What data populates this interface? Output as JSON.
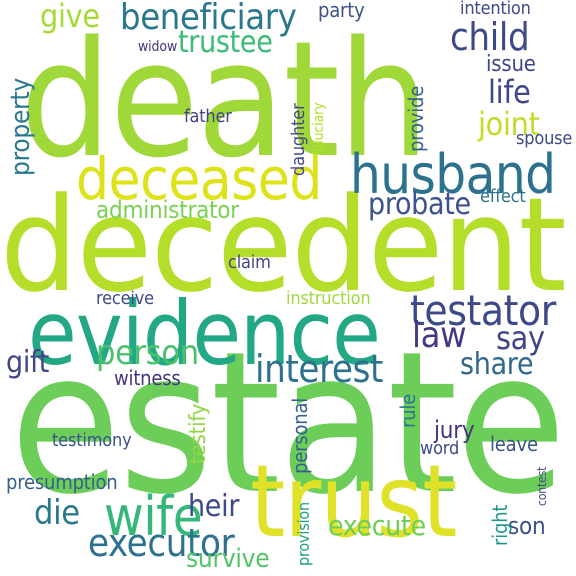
{
  "word_cloud": {
    "background": "#ffffff",
    "palette": [
      "#d7e02a",
      "#9fd838",
      "#6cce59",
      "#40bc71",
      "#21a685",
      "#228d8d",
      "#2c728e",
      "#355e8d",
      "#414487",
      "#482475",
      "#440154"
    ],
    "words": [
      {
        "text": "estate",
        "color": "#6cce59"
      },
      {
        "text": "death",
        "color": "#9fd838"
      },
      {
        "text": "decedent",
        "color": "#b5de2b"
      },
      {
        "text": "evidence",
        "color": "#22a884"
      },
      {
        "text": "trust",
        "color": "#e0e22a"
      },
      {
        "text": "deceased",
        "color": "#dde318"
      },
      {
        "text": "husband",
        "color": "#2c728e"
      },
      {
        "text": "wife",
        "color": "#35b779"
      },
      {
        "text": "beneficiary",
        "color": "#2a788e"
      },
      {
        "text": "trustee",
        "color": "#3bbb75"
      },
      {
        "text": "testator",
        "color": "#3e4989"
      },
      {
        "text": "child",
        "color": "#3e4989"
      },
      {
        "text": "interest",
        "color": "#2c728e"
      },
      {
        "text": "executor",
        "color": "#2c728e"
      },
      {
        "text": "person",
        "color": "#4ac16d"
      },
      {
        "text": "law",
        "color": "#443983"
      },
      {
        "text": "say",
        "color": "#414487"
      },
      {
        "text": "probate",
        "color": "#3b528b"
      },
      {
        "text": "administrator",
        "color": "#7ad151"
      },
      {
        "text": "die",
        "color": "#2a788e"
      },
      {
        "text": "execute",
        "color": "#6ece58"
      },
      {
        "text": "survive",
        "color": "#52c569"
      },
      {
        "text": "heir",
        "color": "#3e4989"
      },
      {
        "text": "give",
        "color": "#a5db36"
      },
      {
        "text": "joint",
        "color": "#bddf26"
      },
      {
        "text": "life",
        "color": "#404688"
      },
      {
        "text": "issue",
        "color": "#404688"
      },
      {
        "text": "party",
        "color": "#3b528b"
      },
      {
        "text": "intention",
        "color": "#3e4989"
      },
      {
        "text": "property",
        "color": "#2a788e"
      },
      {
        "text": "share",
        "color": "#31688e"
      },
      {
        "text": "gift",
        "color": "#404688"
      },
      {
        "text": "presumption",
        "color": "#355f8d"
      },
      {
        "text": "son",
        "color": "#3b528b"
      },
      {
        "text": "witness",
        "color": "#46337f"
      },
      {
        "text": "testify",
        "color": "#90d743"
      },
      {
        "text": "jury",
        "color": "#46337f"
      },
      {
        "text": "testimony",
        "color": "#3b528b"
      },
      {
        "text": "receive",
        "color": "#3e4989"
      },
      {
        "text": "father",
        "color": "#414487"
      },
      {
        "text": "instruction",
        "color": "#9fda3a"
      },
      {
        "text": "personal",
        "color": "#33638d"
      },
      {
        "text": "word",
        "color": "#3e4989"
      },
      {
        "text": "leave",
        "color": "#3b528b"
      },
      {
        "text": "daughter",
        "color": "#404688"
      },
      {
        "text": "provide",
        "color": "#33638d"
      },
      {
        "text": "effect",
        "color": "#2c728e"
      },
      {
        "text": "claim",
        "color": "#414487"
      },
      {
        "text": "rule",
        "color": "#2a788e"
      },
      {
        "text": "right",
        "color": "#1f988b"
      },
      {
        "text": "provision",
        "color": "#20a386"
      },
      {
        "text": "spouse",
        "color": "#3e4989"
      },
      {
        "text": "widow",
        "color": "#46337f"
      },
      {
        "text": "fiduciary",
        "color": "#b8de29"
      },
      {
        "text": "contest",
        "color": "#3e4989"
      }
    ]
  }
}
